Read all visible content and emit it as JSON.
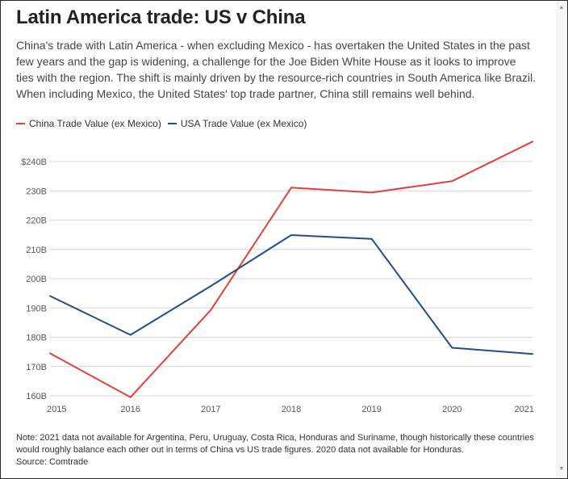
{
  "title": "Latin America trade: US v China",
  "subtitle": "China's trade with Latin America - when excluding Mexico - has overtaken the United States in the past few years and the gap is widening, a challenge for the Joe Biden White House as it looks to improve ties with the region. The shift is mainly driven by the resource-rich countries in South America like Brazil. When including Mexico, the United States' top trade partner, China still remains well behind.",
  "note": "Note: 2021 data not available for Argentina, Peru, Uruguay, Costa Rica, Honduras and Suriname, though historically these countries would roughly balance each other out in terms of China vs US trade figures. 2020 data not available for Honduras.",
  "source": "Source: Comtrade",
  "scrollbar": {
    "up": "▲",
    "down": "▼"
  },
  "colors": {
    "china": "#e3403a",
    "usa": "#1f4e8c",
    "grid": "#d6d6d6"
  },
  "chart_data": {
    "type": "line",
    "title": "Latin America trade: US v China",
    "x": [
      "2015",
      "2016",
      "2017",
      "2018",
      "2019",
      "2020",
      "2021"
    ],
    "series": [
      {
        "name": "China Trade Value (ex Mexico)",
        "values": [
          174.5,
          159.5,
          189.3,
          231.1,
          229.4,
          233.3,
          246.8
        ]
      },
      {
        "name": "USA Trade Value (ex Mexico)",
        "values": [
          194.1,
          180.8,
          197.5,
          214.9,
          213.6,
          176.4,
          174.3
        ]
      }
    ],
    "y_ticks": [
      {
        "value": 160,
        "label": "160B"
      },
      {
        "value": 170,
        "label": "170B"
      },
      {
        "value": 180,
        "label": "180B"
      },
      {
        "value": 190,
        "label": "190B"
      },
      {
        "value": 200,
        "label": "200B"
      },
      {
        "value": 210,
        "label": "210B"
      },
      {
        "value": 220,
        "label": "220B"
      },
      {
        "value": 230,
        "label": "230B"
      },
      {
        "value": 240,
        "label": "$240B"
      }
    ],
    "ylim": [
      160,
      240
    ],
    "xlabel": "",
    "ylabel": "",
    "grid": true,
    "legend": "top-left"
  }
}
